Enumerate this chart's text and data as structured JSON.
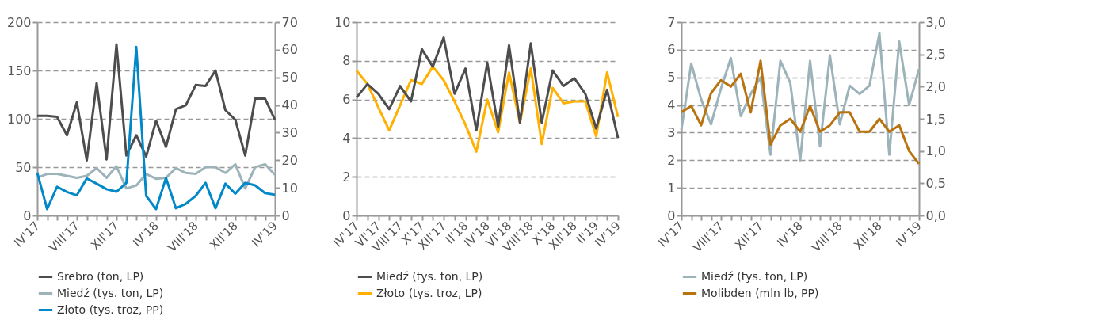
{
  "chart_data": [
    {
      "type": "line",
      "categories": [
        "IV'17",
        null,
        null,
        null,
        "VIII'17",
        null,
        null,
        null,
        "XII'17",
        null,
        null,
        null,
        "IV'18",
        null,
        null,
        null,
        "VIII'18",
        null,
        null,
        null,
        "XII'18",
        null,
        null,
        null,
        "IV'19"
      ],
      "series": [
        {
          "name": "Srebro (ton, LP)",
          "color": "#4d4d4f",
          "values": [
            103,
            103,
            102,
            83,
            117,
            57,
            137,
            58,
            177,
            62,
            83,
            61,
            98,
            71,
            110,
            114,
            135,
            134,
            150,
            109,
            99,
            62,
            121,
            121,
            99
          ]
        },
        {
          "name": "Miedź (tys. ton, LP)",
          "color": "#9db3ba",
          "values": [
            39,
            43,
            43,
            41,
            39,
            41,
            49,
            39,
            51,
            28,
            31,
            43,
            38,
            39,
            49,
            44,
            43,
            50,
            50,
            44,
            53,
            28,
            50,
            53,
            42
          ]
        },
        {
          "name": "Złoto (tys. troz, PP)",
          "color": "#0088c8",
          "axis": "y2",
          "values": [
            15.5,
            2.3,
            10.4,
            8.5,
            7.3,
            13.4,
            11.5,
            9.5,
            8.6,
            11.8,
            61,
            7.1,
            2.3,
            13.6,
            2.6,
            4.2,
            7.1,
            11.8,
            2.6,
            11.5,
            7.9,
            11.8,
            10.9,
            8.1,
            7.5
          ]
        }
      ],
      "ylim": [
        0,
        200
      ],
      "yticks": [
        0,
        50,
        100,
        150,
        200
      ],
      "y2lim": [
        0,
        70
      ],
      "y2ticks": [
        0,
        10,
        20,
        30,
        40,
        50,
        60,
        70
      ],
      "grid": "y",
      "legend": "bottom",
      "line_style": "solid",
      "marker": "none"
    },
    {
      "type": "line",
      "categories": [
        "IV'17",
        null,
        "VI'17",
        null,
        "VIII'17",
        null,
        "X'17",
        null,
        "XII'17",
        null,
        "II'18",
        null,
        "IV'18",
        null,
        "VI'18",
        null,
        "VIII'18",
        null,
        "X'18",
        null,
        "XII'18",
        null,
        "II'19",
        null,
        "IV'19"
      ],
      "series": [
        {
          "name": "Miedź (tys. ton, LP)",
          "color": "#4d4d4f",
          "values": [
            6.1,
            6.8,
            6.3,
            5.5,
            6.7,
            5.9,
            8.6,
            7.7,
            9.2,
            6.3,
            7.6,
            4.4,
            7.9,
            4.6,
            8.8,
            4.8,
            8.9,
            4.8,
            7.5,
            6.7,
            7.1,
            6.3,
            4.5,
            6.5,
            4.0
          ]
        },
        {
          "name": "Złoto (tys. troz, LP)",
          "color": "#ffb000",
          "values": [
            7.5,
            6.8,
            5.6,
            4.4,
            5.7,
            7.0,
            6.8,
            7.7,
            7.0,
            5.9,
            4.7,
            3.3,
            6.0,
            4.3,
            7.4,
            4.8,
            7.6,
            3.7,
            6.6,
            5.8,
            5.9,
            5.9,
            4.1,
            7.4,
            5.1
          ]
        }
      ],
      "ylim": [
        0,
        10
      ],
      "yticks": [
        0,
        2,
        4,
        6,
        8,
        10
      ],
      "grid": "y",
      "legend": "bottom",
      "line_style": "solid",
      "marker": "none"
    },
    {
      "type": "line",
      "categories": [
        "IV'17",
        null,
        null,
        null,
        "VIII'17",
        null,
        null,
        null,
        "XII'17",
        null,
        null,
        null,
        "IV'18",
        null,
        null,
        null,
        "VIII'18",
        null,
        null,
        null,
        "XII'18",
        null,
        null,
        null,
        "IV'19"
      ],
      "series": [
        {
          "name": "Miedź (tys. ton, LP)",
          "color": "#9db3ba",
          "values": [
            3.1,
            5.5,
            4.2,
            3.3,
            4.6,
            5.7,
            3.6,
            4.4,
            5.0,
            2.2,
            5.6,
            4.8,
            2.0,
            5.6,
            2.5,
            5.8,
            3.3,
            4.7,
            4.4,
            4.7,
            6.6,
            2.2,
            6.3,
            4.0,
            5.3
          ]
        },
        {
          "name": "Molibden (mln lb, PP)",
          "color": "#b8730f",
          "axis": "y2",
          "values": [
            1.6,
            1.7,
            1.4,
            1.9,
            2.1,
            2.0,
            2.2,
            1.6,
            2.4,
            1.1,
            1.4,
            1.5,
            1.3,
            1.7,
            1.3,
            1.4,
            1.6,
            1.6,
            1.3,
            1.3,
            1.5,
            1.3,
            1.4,
            1.0,
            0.8
          ]
        }
      ],
      "ylim": [
        0,
        7
      ],
      "yticks": [
        0,
        1,
        2,
        3,
        4,
        5,
        6,
        7
      ],
      "y2lim": [
        0,
        3
      ],
      "y2ticks": [
        {
          "value": 0,
          "label": "0,0"
        },
        {
          "value": 0.5,
          "label": "0,5"
        },
        {
          "value": 1,
          "label": "1,0"
        },
        {
          "value": 1.5,
          "label": "1,5"
        },
        {
          "value": 2,
          "label": "2,0"
        },
        {
          "value": 2.5,
          "label": "2,5"
        },
        {
          "value": 3,
          "label": "3,0"
        }
      ],
      "grid": "y",
      "legend": "bottom",
      "line_style": "solid",
      "marker": "none"
    }
  ]
}
